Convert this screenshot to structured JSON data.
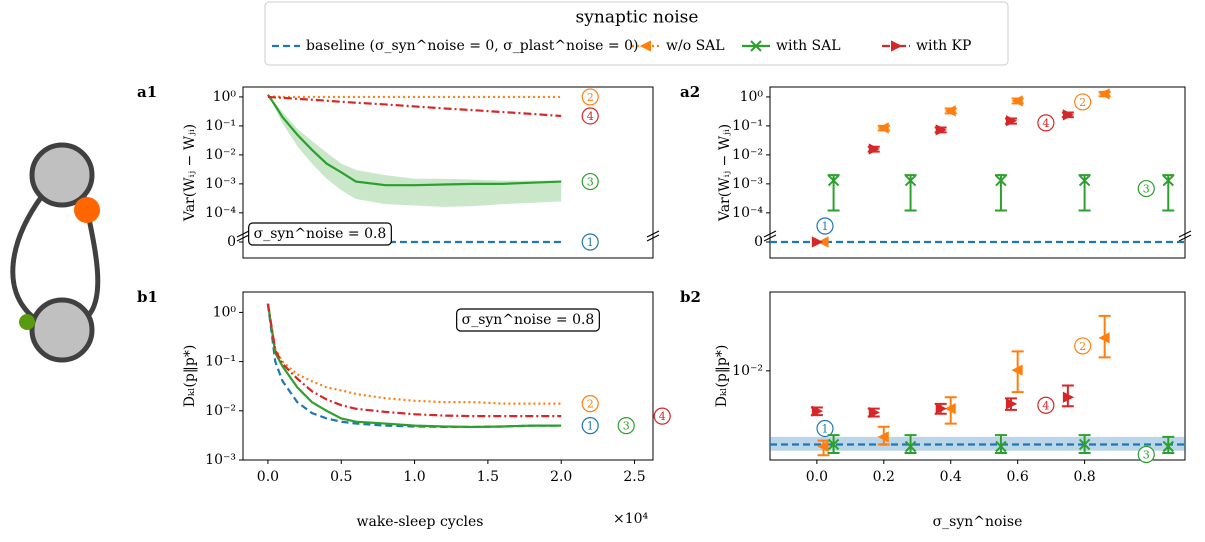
{
  "chart_data": [
    {
      "type": "line",
      "panel": "a1",
      "legend_title": "synaptic noise",
      "y_label": "Var(Wᵢⱼ − Wⱼᵢ)",
      "annotation": "σ_syn^noise = 0.8",
      "log_y": true,
      "broken_axis": true,
      "xlim": [
        -1700,
        26260
      ],
      "ylim": [
        3e-05,
        2.2
      ],
      "yticks": [
        0,
        {
          "value": 0.0001,
          "label": "10⁻⁴"
        },
        {
          "value": 0.001,
          "label": "10⁻³"
        },
        {
          "value": 0.01,
          "label": "10⁻²"
        },
        {
          "value": 0.1,
          "label": "10⁻¹"
        },
        {
          "value": 1,
          "label": "10⁰"
        }
      ],
      "x": [
        0,
        500,
        1000,
        2000,
        3000,
        4000,
        5000,
        6000,
        8000,
        10000,
        12000,
        14000,
        16000,
        18000,
        20000
      ],
      "series": [
        {
          "name": "baseline (σ_syn^noise = 0, σ_plast^noise = 0)",
          "color": "#1f77b4",
          "linestyle": "dashed",
          "tag": "1",
          "values": [
            0,
            0,
            0,
            0,
            0,
            0,
            0,
            0,
            0,
            0,
            0,
            0,
            0,
            0,
            0
          ]
        },
        {
          "name": "w/o SAL",
          "color": "#ff7f0e",
          "linestyle": "dotted",
          "marker": "tri-left",
          "tag": "2",
          "values": [
            1.05,
            1.02,
            1.0,
            1.0,
            1.0,
            1.0,
            1.0,
            1.0,
            1.0,
            1.0,
            1.0,
            1.0,
            1.0,
            1.0,
            1.0
          ]
        },
        {
          "name": "with SAL",
          "color": "#2ca02c",
          "linestyle": "solid",
          "marker": "x",
          "tag": "3",
          "values": [
            1.2,
            0.5,
            0.2,
            0.05,
            0.015,
            0.005,
            0.0025,
            0.0012,
            0.0009,
            0.0009,
            0.00095,
            0.001,
            0.001,
            0.0011,
            0.0012
          ],
          "lower": [
            1.1,
            0.4,
            0.12,
            0.02,
            0.005,
            0.0015,
            0.0006,
            0.0003,
            0.0002,
            0.00018,
            0.00016,
            0.00017,
            0.0002,
            0.00022,
            0.00025
          ],
          "upper": [
            1.3,
            0.6,
            0.3,
            0.08,
            0.03,
            0.012,
            0.005,
            0.003,
            0.002,
            0.0015,
            0.0015,
            0.0014,
            0.0013,
            0.0013,
            0.0013
          ]
        },
        {
          "name": "with KP",
          "color": "#d62728",
          "linestyle": "dashdot",
          "marker": "tri-right",
          "tag": "4",
          "values": [
            1.0,
            0.96,
            0.93,
            0.86,
            0.8,
            0.74,
            0.68,
            0.63,
            0.55,
            0.47,
            0.4,
            0.35,
            0.3,
            0.26,
            0.22
          ]
        }
      ]
    },
    {
      "type": "errorbar",
      "panel": "a2",
      "y_label": "Var(Wᵢⱼ − Wⱼᵢ)",
      "log_y": true,
      "broken_axis": true,
      "xlim": [
        -0.14,
        1.1
      ],
      "ylim": [
        3e-05,
        2.2
      ],
      "yticks": [
        0,
        {
          "value": 0.0001,
          "label": "10⁻⁴"
        },
        {
          "value": 0.001,
          "label": "10⁻³"
        },
        {
          "value": 0.01,
          "label": "10⁻²"
        },
        {
          "value": 0.1,
          "label": "10⁻¹"
        },
        {
          "value": 1,
          "label": "10⁰"
        }
      ],
      "series": [
        {
          "color": "#1f77b4",
          "linestyle": "dashed",
          "tag": "1",
          "values": [
            0
          ]
        },
        {
          "color": "#ff7f0e",
          "marker": "tri-left",
          "tag": "2",
          "x": [
            0.02,
            0.2,
            0.4,
            0.6,
            0.86
          ],
          "values": [
            0,
            0.085,
            0.33,
            0.73,
            1.27
          ],
          "low": [
            0,
            0.07,
            0.27,
            0.6,
            1.05
          ],
          "high": [
            0,
            0.1,
            0.4,
            0.88,
            1.5
          ]
        },
        {
          "color": "#2ca02c",
          "marker": "x",
          "tag": "3",
          "x": [
            0.05,
            0.28,
            0.55,
            0.8,
            1.05
          ],
          "values": [
            0.0013,
            0.0013,
            0.0013,
            0.0013,
            0.0013
          ],
          "low": [
            0.00012,
            0.00012,
            0.00012,
            0.00012,
            0.00012
          ],
          "high": [
            0.002,
            0.002,
            0.002,
            0.002,
            0.002
          ]
        },
        {
          "color": "#d62728",
          "marker": "tri-right",
          "tag": "4",
          "x": [
            0,
            0.17,
            0.37,
            0.58,
            0.75
          ],
          "values": [
            0,
            0.016,
            0.073,
            0.15,
            0.24
          ],
          "low": [
            0,
            0.013,
            0.06,
            0.12,
            0.2
          ],
          "high": [
            0,
            0.019,
            0.088,
            0.18,
            0.29
          ]
        }
      ]
    },
    {
      "type": "line",
      "panel": "b1",
      "y_label": "Dₖₗ(p‖p*)",
      "annotation": "σ_syn^noise = 0.8",
      "x_label": "wake-sleep cycles",
      "x_offset_label": "×10⁴",
      "log_y": true,
      "xlim": [
        -1700,
        26260
      ],
      "ylim": [
        0.001,
        2.6
      ],
      "xticks": [
        {
          "value": 0,
          "label": "0.0"
        },
        {
          "value": 5000,
          "label": "0.5"
        },
        {
          "value": 10000,
          "label": "1.0"
        },
        {
          "value": 15000,
          "label": "1.5"
        },
        {
          "value": 20000,
          "label": "2.0"
        },
        {
          "value": 25000,
          "label": "2.5"
        }
      ],
      "yticks": [
        {
          "value": 0.001,
          "label": "10⁻³"
        },
        {
          "value": 0.01,
          "label": "10⁻²"
        },
        {
          "value": 0.1,
          "label": "10⁻¹"
        },
        {
          "value": 1,
          "label": "10⁰"
        }
      ],
      "x": [
        0,
        500,
        1000,
        2000,
        3000,
        4000,
        5000,
        6000,
        8000,
        10000,
        12000,
        14000,
        16000,
        18000,
        20000
      ],
      "series": [
        {
          "color": "#1f77b4",
          "linestyle": "dashed",
          "tag": "1",
          "values": [
            1.5,
            0.1,
            0.04,
            0.015,
            0.009,
            0.007,
            0.006,
            0.0055,
            0.005,
            0.0048,
            0.0047,
            0.0047,
            0.0048,
            0.005,
            0.005
          ]
        },
        {
          "color": "#ff7f0e",
          "linestyle": "dotted",
          "tag": "2",
          "values": [
            1.5,
            0.18,
            0.1,
            0.055,
            0.04,
            0.03,
            0.026,
            0.022,
            0.018,
            0.016,
            0.015,
            0.015,
            0.014,
            0.014,
            0.014
          ]
        },
        {
          "color": "#2ca02c",
          "linestyle": "solid",
          "tag": "3",
          "values": [
            1.5,
            0.15,
            0.08,
            0.03,
            0.015,
            0.01,
            0.007,
            0.006,
            0.0055,
            0.005,
            0.0048,
            0.0047,
            0.0048,
            0.005,
            0.005
          ]
        },
        {
          "color": "#d62728",
          "linestyle": "dashdot",
          "tag": "4",
          "values": [
            1.5,
            0.17,
            0.09,
            0.045,
            0.025,
            0.017,
            0.013,
            0.011,
            0.0095,
            0.0085,
            0.008,
            0.0078,
            0.0078,
            0.0078,
            0.0078
          ]
        }
      ]
    },
    {
      "type": "errorbar",
      "panel": "b2",
      "y_label": "Dₖₗ(p‖p*)",
      "x_label": "σ_syn^noise",
      "log_y": true,
      "xlim": [
        -0.14,
        1.1
      ],
      "ylim": [
        0.003,
        0.029
      ],
      "xticks": [
        {
          "value": 0,
          "label": "0.0"
        },
        0.2,
        0.4,
        0.6,
        0.8
      ],
      "yticks": [
        {
          "value": 0.01,
          "label": "10⁻²"
        }
      ],
      "series": [
        {
          "color": "#1f77b4",
          "linestyle": "dashed",
          "tag": "1",
          "values": [
            0.0037
          ],
          "lower": [
            0.0034
          ],
          "upper": [
            0.0041
          ]
        },
        {
          "color": "#ff7f0e",
          "marker": "tri-left",
          "tag": "2",
          "x": [
            0.02,
            0.2,
            0.4,
            0.6,
            0.86
          ],
          "values": [
            0.0036,
            0.0041,
            0.006,
            0.0101,
            0.0156
          ],
          "low": [
            0.0032,
            0.0037,
            0.0049,
            0.0075,
            0.012
          ],
          "high": [
            0.0039,
            0.0047,
            0.007,
            0.013,
            0.021
          ]
        },
        {
          "color": "#2ca02c",
          "marker": "x",
          "tag": "3",
          "x": [
            0.05,
            0.28,
            0.55,
            0.8,
            1.05
          ],
          "values": [
            0.0037,
            0.0036,
            0.0036,
            0.0037,
            0.0036
          ],
          "low": [
            0.0033,
            0.0033,
            0.0033,
            0.0033,
            0.0033
          ],
          "high": [
            0.0042,
            0.0042,
            0.0042,
            0.0042,
            0.0041
          ]
        },
        {
          "color": "#d62728",
          "marker": "tri-right",
          "tag": "4",
          "x": [
            0,
            0.17,
            0.37,
            0.58,
            0.75
          ],
          "values": [
            0.0058,
            0.0057,
            0.006,
            0.0064,
            0.007
          ],
          "low": [
            0.0055,
            0.0054,
            0.0056,
            0.0059,
            0.0062
          ],
          "high": [
            0.0061,
            0.006,
            0.0064,
            0.0069,
            0.0082
          ]
        }
      ]
    }
  ]
}
